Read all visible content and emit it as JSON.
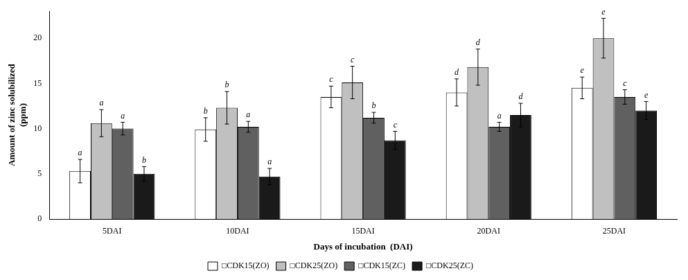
{
  "chart_data": {
    "type": "bar",
    "xlabel": "Days of incubation  (DAI)",
    "ylabel": "Amount of zinc solubilized\n(ppm)",
    "categories": [
      "5DAI",
      "10DAI",
      "15DAI",
      "20DAI",
      "25DAI"
    ],
    "series": [
      {
        "name": "□CDK15(ZO)",
        "color": "#ffffff",
        "values": [
          5.3,
          9.9,
          13.5,
          14.0,
          14.5
        ],
        "errors": [
          1.3,
          1.3,
          1.2,
          1.5,
          1.2
        ],
        "labels": [
          "a",
          "b",
          "c",
          "d",
          "e"
        ]
      },
      {
        "name": "□CDK25(ZO)",
        "color": "#c0c0c0",
        "values": [
          10.6,
          12.3,
          15.1,
          16.8,
          20.0
        ],
        "errors": [
          1.5,
          1.8,
          1.8,
          2.0,
          2.2
        ],
        "labels": [
          "a",
          "b",
          "c",
          "d",
          "e"
        ]
      },
      {
        "name": "□CDK15(ZC)",
        "color": "#606060",
        "values": [
          10.0,
          10.2,
          11.2,
          10.2,
          13.5
        ],
        "errors": [
          0.7,
          0.6,
          0.6,
          0.5,
          0.8
        ],
        "labels": [
          "a",
          "a",
          "b",
          "a",
          "c"
        ]
      },
      {
        "name": "□CDK25(ZC)",
        "color": "#1a1a1a",
        "values": [
          5.0,
          4.7,
          8.7,
          11.5,
          12.0
        ],
        "errors": [
          0.8,
          0.9,
          1.0,
          1.3,
          1.0
        ],
        "labels": [
          "b",
          "a",
          "c",
          "d",
          "e"
        ]
      }
    ],
    "ylim": [
      0,
      23
    ],
    "yticks": [
      0,
      5,
      10,
      15,
      20
    ],
    "grid": false,
    "legend": "bottom"
  }
}
